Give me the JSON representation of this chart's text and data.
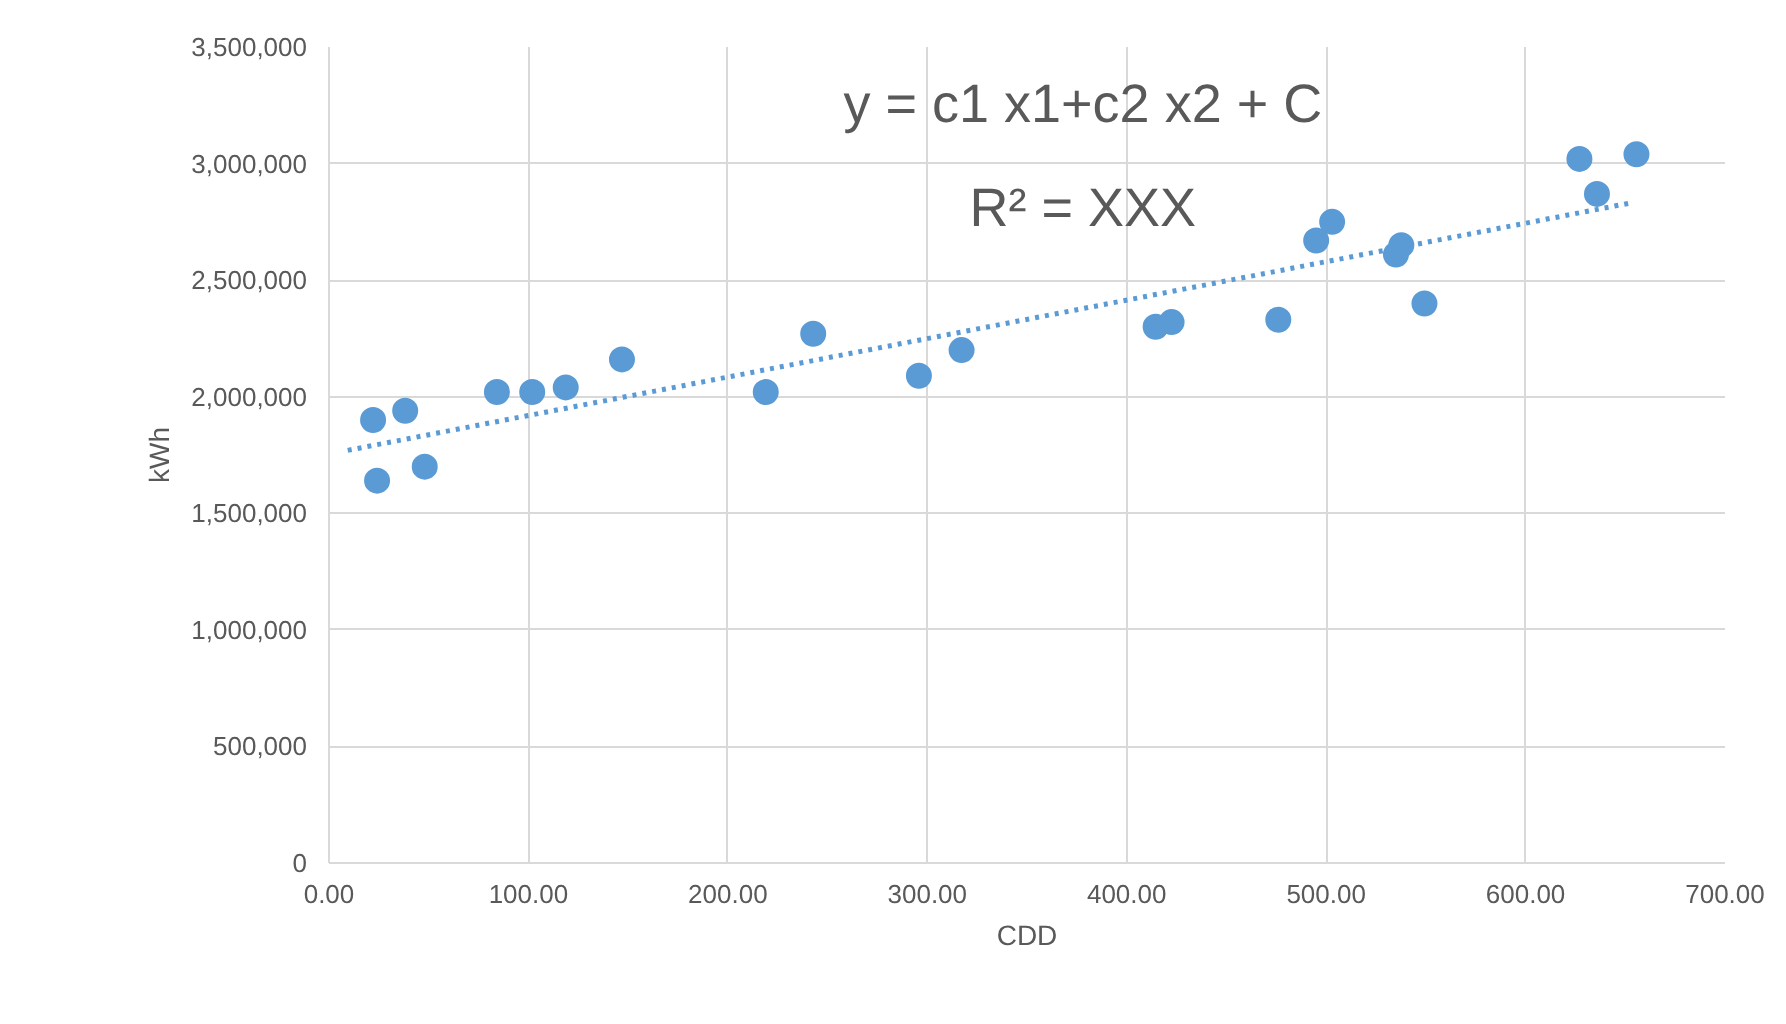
{
  "chart_data": {
    "type": "scatter",
    "xlabel": "CDD",
    "ylabel": "kWh",
    "annotations": [
      "y = c1 x1+c2 x2 + C",
      "R² = XXX"
    ],
    "series": [
      {
        "color": "#5b9bd5",
        "x": [
          22.1,
          24.1,
          38.2,
          48,
          84.2,
          101.9,
          118.7,
          146.9,
          219,
          242.8,
          295.8,
          317.2,
          414.5,
          422.5,
          476,
          495,
          503,
          535,
          537.7,
          549.3,
          627,
          635.8,
          655.6
        ],
        "values": [
          1900000,
          1640000,
          1940000,
          1700000,
          2020000,
          2020000,
          2040000,
          2160000,
          2020000,
          2270000,
          2090000,
          2200000,
          2300000,
          2320000,
          2330000,
          2670000,
          2750000,
          2610000,
          2650000,
          2400000,
          3020000,
          2870000,
          3040000
        ]
      },
      {
        "type": "line",
        "color": "#5b9bd5",
        "line_style": "dotted",
        "marker": "none",
        "x": [
          9.4,
          652
        ],
        "values": [
          1770000,
          2830000
        ]
      }
    ],
    "xlim": [
      0,
      700
    ],
    "ylim": [
      0,
      3500000
    ],
    "xticks": [
      {
        "value": 0,
        "label": "0.00"
      },
      {
        "value": 100,
        "label": "100.00"
      },
      {
        "value": 200,
        "label": "200.00"
      },
      {
        "value": 300,
        "label": "300.00"
      },
      {
        "value": 400,
        "label": "400.00"
      },
      {
        "value": 500,
        "label": "500.00"
      },
      {
        "value": 600,
        "label": "600.00"
      },
      {
        "value": 700,
        "label": "700.00"
      }
    ],
    "yticks": [
      0,
      {
        "value": 500000,
        "label": "500,000"
      },
      {
        "value": 1000000,
        "label": "1,000,000"
      },
      {
        "value": 1500000,
        "label": "1,500,000"
      },
      {
        "value": 2000000,
        "label": "2,000,000"
      },
      {
        "value": 2500000,
        "label": "2,500,000"
      },
      {
        "value": 3000000,
        "label": "3,000,000"
      },
      {
        "value": 3500000,
        "label": "3,500,000"
      }
    ],
    "marker": "circle",
    "grid": true
  }
}
